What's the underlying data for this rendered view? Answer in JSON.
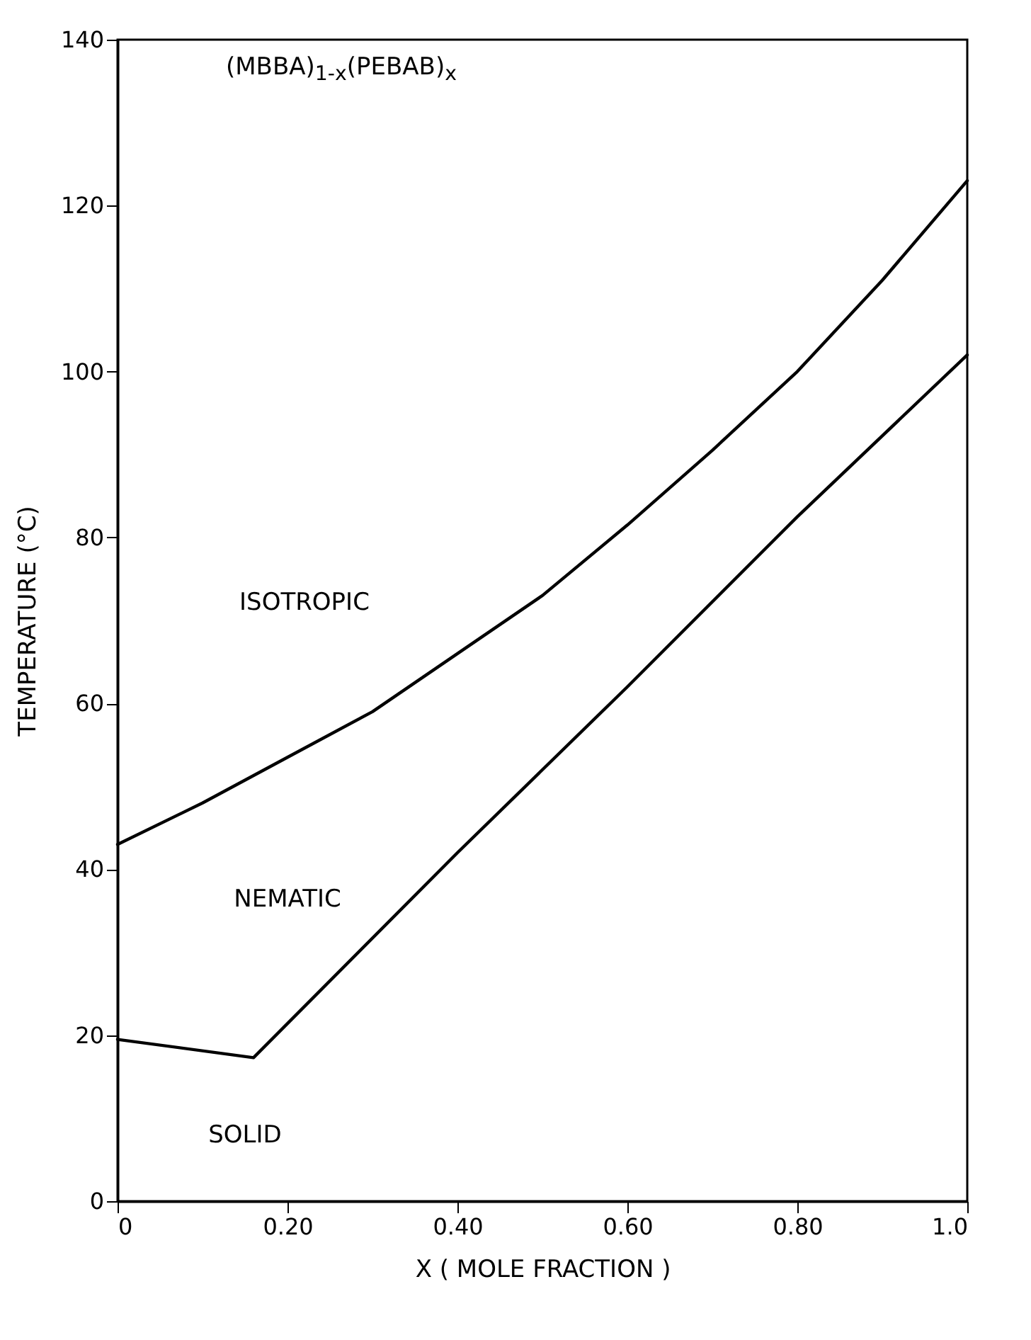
{
  "chart_data": {
    "type": "line",
    "title": "(MBBA)$_{1-x}$(PEBAB)$_{x}$",
    "xlabel": "X  ( MOLE FRACTION )",
    "ylabel": "TEMPERATURE (°C)",
    "series": [
      {
        "color": "#000000",
        "x": [
          0,
          0.1,
          0.2,
          0.3,
          0.4,
          0.5,
          0.6,
          0.7,
          0.8,
          0.9,
          1.0
        ],
        "values": [
          43,
          48,
          53.5,
          59,
          66,
          73,
          81.5,
          90.5,
          100,
          111,
          123
        ]
      },
      {
        "color": "#000000",
        "x": [
          0,
          0.16,
          0.4,
          0.6,
          0.8,
          1.0
        ],
        "values": [
          19.5,
          17.3,
          42,
          62,
          82.5,
          102
        ]
      }
    ],
    "xlim": [
      0,
      1.0
    ],
    "xticks": [
      0,
      {
        "value": 0.2,
        "label": "0.20"
      },
      {
        "value": 0.4,
        "label": "0.40"
      },
      {
        "value": 0.6,
        "label": "0.60"
      },
      {
        "value": 0.8,
        "label": "0.80"
      },
      {
        "value": 1.0,
        "label": "1.0"
      }
    ],
    "ylim": [
      0,
      140
    ],
    "yticks": [
      0,
      20,
      40,
      60,
      80,
      100,
      120,
      140
    ],
    "marker": "none",
    "line_style": "solid",
    "annotations": [
      "ISOTROPIC",
      "NEMATIC",
      "SOLID"
    ]
  }
}
